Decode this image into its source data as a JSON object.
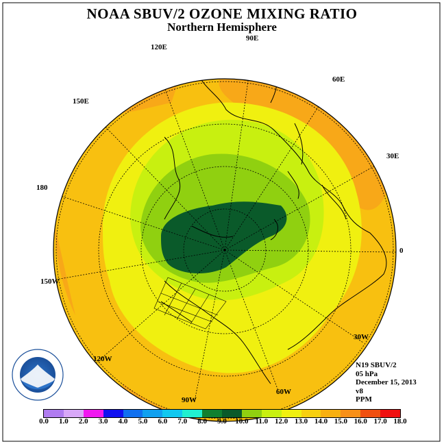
{
  "title": "NOAA SBUV/2 OZONE MIXING RATIO",
  "subtitle": "Northern Hemisphere",
  "longitude_labels": {
    "90E": "90E",
    "60E": "60E",
    "30E": "30E",
    "0": "0",
    "30W": "30W",
    "60W": "60W",
    "90W": "90W",
    "120W": "120W",
    "150W": "150W",
    "180": "180",
    "150E": "150E",
    "120E": "120E"
  },
  "info": {
    "instrument": "N19 SBUV/2",
    "level": "05 hPa",
    "date": "December 15, 2013",
    "version": "v8",
    "units": "PPM"
  },
  "legend": {
    "ticks": [
      "0.0",
      "1.0",
      "2.0",
      "3.0",
      "4.0",
      "5.0",
      "6.0",
      "7.0",
      "8.0",
      "9.0",
      "10.0",
      "11.0",
      "12.0",
      "13.0",
      "14.0",
      "15.0",
      "16.0",
      "17.0",
      "18.0"
    ],
    "colors": [
      "#b07cf0",
      "#d8a8f8",
      "#f018f0",
      "#1010f0",
      "#1070f0",
      "#10a0f0",
      "#10c8f0",
      "#20f0d0",
      "#108030",
      "#0a5a2a",
      "#90d010",
      "#c8f010",
      "#f0f010",
      "#f8d010",
      "#f8b010",
      "#f89018",
      "#f05010",
      "#f01010",
      "#8b5a3c"
    ]
  },
  "logo": "NOAA"
}
